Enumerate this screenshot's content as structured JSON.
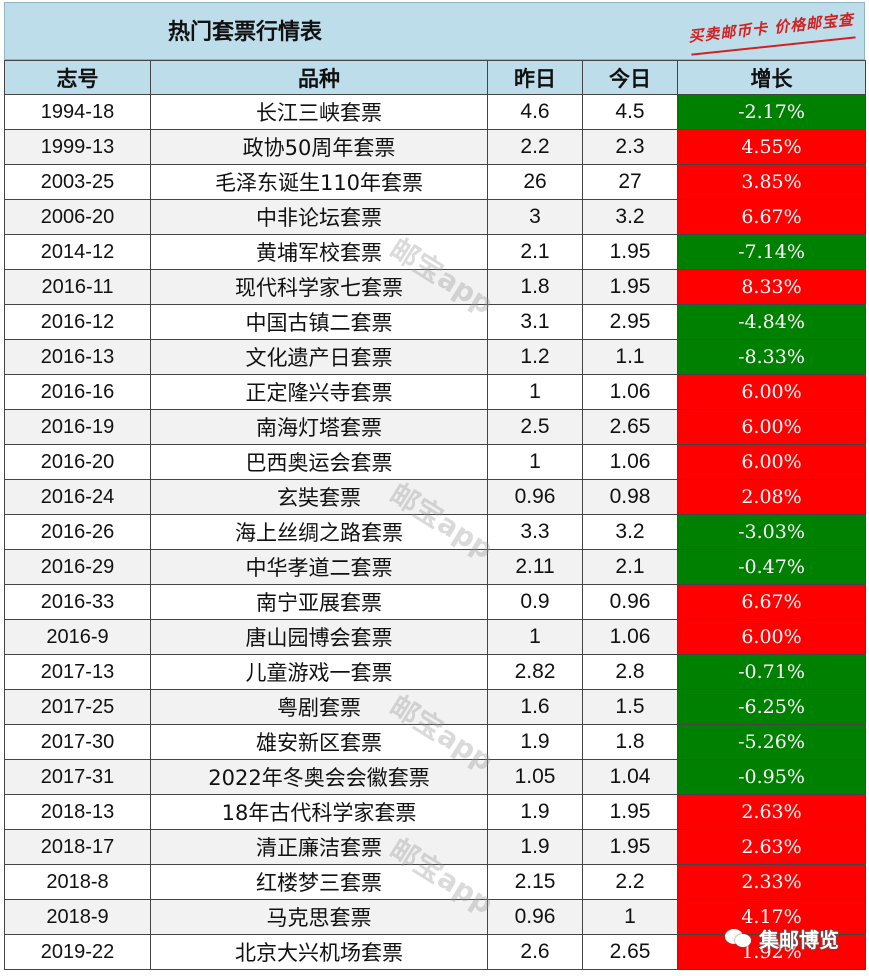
{
  "title": "热门套票行情表",
  "slogan": "买卖邮币卡 价格邮宝查",
  "headers": {
    "code": "志号",
    "name": "品种",
    "yesterday": "昨日",
    "today": "今日",
    "change": "增长"
  },
  "rows": [
    {
      "code": "1994-18",
      "name": "长江三峡套票",
      "yesterday": "4.6",
      "today": "4.5",
      "change": "-2.17%",
      "trend": "neg"
    },
    {
      "code": "1999-13",
      "name": "政协50周年套票",
      "yesterday": "2.2",
      "today": "2.3",
      "change": "4.55%",
      "trend": "pos"
    },
    {
      "code": "2003-25",
      "name": "毛泽东诞生110年套票",
      "yesterday": "26",
      "today": "27",
      "change": "3.85%",
      "trend": "pos"
    },
    {
      "code": "2006-20",
      "name": "中非论坛套票",
      "yesterday": "3",
      "today": "3.2",
      "change": "6.67%",
      "trend": "pos"
    },
    {
      "code": "2014-12",
      "name": "黄埔军校套票",
      "yesterday": "2.1",
      "today": "1.95",
      "change": "-7.14%",
      "trend": "neg"
    },
    {
      "code": "2016-11",
      "name": "现代科学家七套票",
      "yesterday": "1.8",
      "today": "1.95",
      "change": "8.33%",
      "trend": "pos"
    },
    {
      "code": "2016-12",
      "name": "中国古镇二套票",
      "yesterday": "3.1",
      "today": "2.95",
      "change": "-4.84%",
      "trend": "neg"
    },
    {
      "code": "2016-13",
      "name": "文化遗产日套票",
      "yesterday": "1.2",
      "today": "1.1",
      "change": "-8.33%",
      "trend": "neg"
    },
    {
      "code": "2016-16",
      "name": "正定隆兴寺套票",
      "yesterday": "1",
      "today": "1.06",
      "change": "6.00%",
      "trend": "pos"
    },
    {
      "code": "2016-19",
      "name": "南海灯塔套票",
      "yesterday": "2.5",
      "today": "2.65",
      "change": "6.00%",
      "trend": "pos"
    },
    {
      "code": "2016-20",
      "name": "巴西奥运会套票",
      "yesterday": "1",
      "today": "1.06",
      "change": "6.00%",
      "trend": "pos"
    },
    {
      "code": "2016-24",
      "name": "玄奘套票",
      "yesterday": "0.96",
      "today": "0.98",
      "change": "2.08%",
      "trend": "pos"
    },
    {
      "code": "2016-26",
      "name": "海上丝绸之路套票",
      "yesterday": "3.3",
      "today": "3.2",
      "change": "-3.03%",
      "trend": "neg"
    },
    {
      "code": "2016-29",
      "name": "中华孝道二套票",
      "yesterday": "2.11",
      "today": "2.1",
      "change": "-0.47%",
      "trend": "neg"
    },
    {
      "code": "2016-33",
      "name": "南宁亚展套票",
      "yesterday": "0.9",
      "today": "0.96",
      "change": "6.67%",
      "trend": "pos"
    },
    {
      "code": "2016-9",
      "name": "唐山园博会套票",
      "yesterday": "1",
      "today": "1.06",
      "change": "6.00%",
      "trend": "pos"
    },
    {
      "code": "2017-13",
      "name": "儿童游戏一套票",
      "yesterday": "2.82",
      "today": "2.8",
      "change": "-0.71%",
      "trend": "neg"
    },
    {
      "code": "2017-25",
      "name": "粤剧套票",
      "yesterday": "1.6",
      "today": "1.5",
      "change": "-6.25%",
      "trend": "neg"
    },
    {
      "code": "2017-30",
      "name": "雄安新区套票",
      "yesterday": "1.9",
      "today": "1.8",
      "change": "-5.26%",
      "trend": "neg"
    },
    {
      "code": "2017-31",
      "name": "2022年冬奥会会徽套票",
      "yesterday": "1.05",
      "today": "1.04",
      "change": "-0.95%",
      "trend": "neg"
    },
    {
      "code": "2018-13",
      "name": "18年古代科学家套票",
      "yesterday": "1.9",
      "today": "1.95",
      "change": "2.63%",
      "trend": "pos"
    },
    {
      "code": "2018-17",
      "name": "清正廉洁套票",
      "yesterday": "1.9",
      "today": "1.95",
      "change": "2.63%",
      "trend": "pos"
    },
    {
      "code": "2018-8",
      "name": "红楼梦三套票",
      "yesterday": "2.15",
      "today": "2.2",
      "change": "2.33%",
      "trend": "pos"
    },
    {
      "code": "2018-9",
      "name": "马克思套票",
      "yesterday": "0.96",
      "today": "1",
      "change": "4.17%",
      "trend": "pos"
    },
    {
      "code": "2019-22",
      "name": "北京大兴机场套票",
      "yesterday": "2.6",
      "today": "2.65",
      "change": "1.92%",
      "trend": "pos"
    }
  ],
  "watermark": "邮宝app",
  "brand": "集邮博览",
  "colors": {
    "positive": "#ff0000",
    "negative": "#008000",
    "header": "#bcdde9",
    "slogan": "#d42020"
  },
  "icons": {
    "brand": "wechat-icon"
  }
}
